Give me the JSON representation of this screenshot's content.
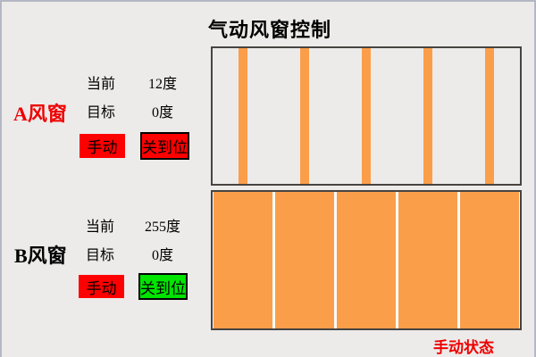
{
  "title": "气动风窗控制",
  "colors": {
    "background": "#ECEBEA",
    "frame_border": "#B4B7C3",
    "panel_border": "#474441",
    "slat_orange": "#FB9E4A",
    "gap_white": "#FCFCFC",
    "button_red": "#FF0000",
    "indicator_green": "#00E400",
    "text_red": "#EE0000"
  },
  "window_a": {
    "name": "A风窗",
    "name_color": "#EE0000",
    "current_label": "当前",
    "current_value": "12度",
    "target_label": "目标",
    "target_value": "0度",
    "manual_button": "手动",
    "manual_color": "#FF0000",
    "closed_button": "关到位",
    "closed_color": "#FF0000",
    "panel": {
      "slats": 5,
      "state": "open"
    }
  },
  "window_b": {
    "name": "B风窗",
    "name_color": "#000000",
    "current_label": "当前",
    "current_value": "255度",
    "target_label": "目标",
    "target_value": "0度",
    "manual_button": "手动",
    "manual_color": "#FF0000",
    "closed_button": "关到位",
    "closed_color": "#00E400",
    "panel": {
      "slats": 5,
      "state": "closed"
    }
  },
  "status": {
    "text": "手动状态",
    "color": "#EE0000"
  }
}
